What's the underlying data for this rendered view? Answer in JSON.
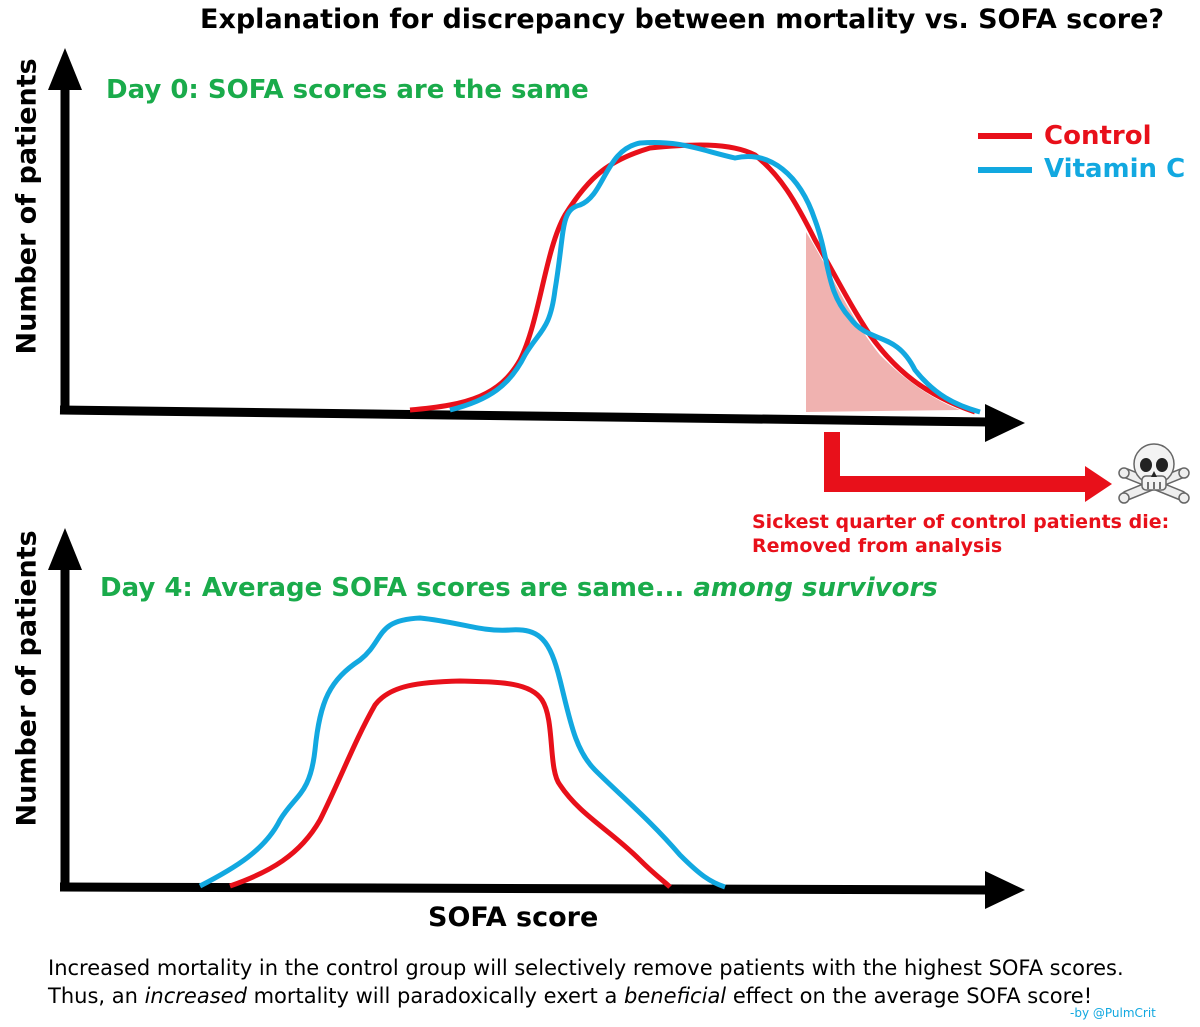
{
  "title": "Explanation for discrepancy between mortality vs. SOFA score?",
  "day0_label": "Day 0:  SOFA scores are the same",
  "day4_label_main": "Day 4:  Average SOFA scores are same... ",
  "day4_label_italic": "among survivors",
  "legend": {
    "control": "Control",
    "vitamin_c": "Vitamin C"
  },
  "y_axis_label": "Number of patients",
  "x_axis_label": "SOFA score",
  "death_note": {
    "line1": "Sickest quarter of control patients die:",
    "line2": "Removed from analysis"
  },
  "footer": {
    "line1": "Increased mortality in the control group will selectively remove patients with the highest SOFA scores.",
    "line2_a": "Thus, an ",
    "line2_b": "increased",
    "line2_c": " mortality will paradoxically exert a ",
    "line2_d": "beneficial",
    "line2_e": " effect on the average SOFA score!"
  },
  "credit": "-by @PulmCrit",
  "icons": {
    "skull": "skull-and-crossbones-icon"
  },
  "colors": {
    "control": "#e8101a",
    "vitamin_c": "#12a8e0",
    "day_label": "#1aab4b",
    "shaded": "#f0a8a6"
  }
}
